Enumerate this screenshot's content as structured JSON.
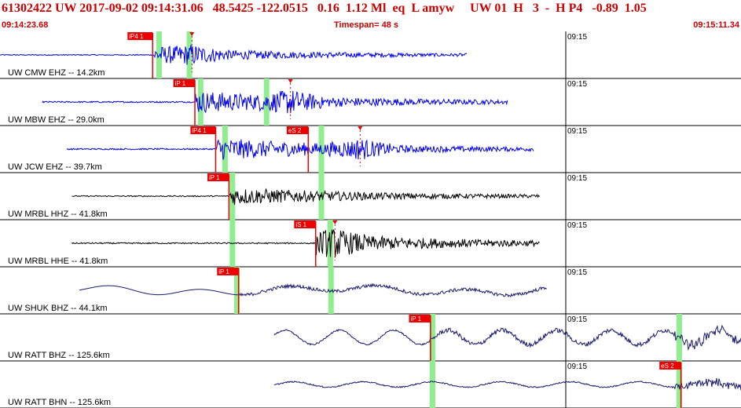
{
  "header": {
    "event_line": "61302422 UW 2017-09-02 09:14:31.06   48.5425 -122.0515   0.16  1.12 Ml  eq  L amyw     UW 01  H   3  -  H P4   -0.89  1.05",
    "start_time": "09:14:23.68",
    "timespan": "Timespan=  48 s",
    "end_time": "09:15:11.34"
  },
  "time_tick_label": "09:15",
  "colors": {
    "header_text": "#cc0000",
    "blue_trace": "#0000ee",
    "black_trace": "#000000",
    "navy_trace": "#1a1a6e",
    "pick": "#ee0000",
    "window": "#90ee90",
    "grid": "#000000"
  },
  "traces": [
    {
      "label": "UW CMW EHZ -- 14.2km",
      "color": "blue",
      "start": 0.0,
      "end": 0.63,
      "type": "sp",
      "amp": 0.35,
      "picks": [
        {
          "label": "iP4 1",
          "t": 0.206
        }
      ],
      "windows": [
        0.211,
        0.252
      ],
      "s_marker": 0.259
    },
    {
      "label": "UW MBW EHZ -- 29.0km",
      "color": "blue",
      "start": 0.057,
      "end": 0.685,
      "type": "sp",
      "amp": 0.5,
      "picks": [
        {
          "label": "iP 1",
          "t": 0.263
        }
      ],
      "windows": [
        0.267,
        0.356
      ],
      "s_marker": 0.392
    },
    {
      "label": "UW JCW EHZ -- 39.7km",
      "color": "blue",
      "start": 0.09,
      "end": 0.72,
      "type": "sp",
      "amp": 0.5,
      "picks": [
        {
          "label": "iP4 1",
          "t": 0.291
        },
        {
          "label": "eS 2",
          "t": 0.416
        }
      ],
      "windows": [
        0.3,
        0.43
      ],
      "s_marker": 0.486
    },
    {
      "label": "UW MRBL HHZ -- 41.8km",
      "color": "black",
      "start": 0.097,
      "end": 0.728,
      "type": "bb",
      "amp": 0.4,
      "picks": [
        {
          "label": "iP 1",
          "t": 0.309
        }
      ],
      "windows": [
        0.31,
        0.43
      ],
      "s_marker": null
    },
    {
      "label": "UW MRBL HHE -- 41.8km",
      "color": "black",
      "start": 0.097,
      "end": 0.728,
      "type": "bb",
      "amp": 0.45,
      "picks": [
        {
          "label": "iS 1",
          "t": 0.426
        }
      ],
      "windows": [
        0.31,
        0.442
      ],
      "s_marker": 0.452
    },
    {
      "label": "UW SHUK BHZ -- 44.1km",
      "color": "navy",
      "start": 0.107,
      "end": 0.738,
      "type": "lp",
      "amp": 0.4,
      "picks": [
        {
          "label": "iP 1",
          "t": 0.322
        }
      ],
      "windows": [
        0.316,
        0.443
      ],
      "s_marker": null
    },
    {
      "label": "UW RATT BHZ -- 125.6km",
      "color": "navy",
      "start": 0.37,
      "end": 1.0,
      "type": "lp2",
      "amp": 0.55,
      "picks": [
        {
          "label": "iP 1",
          "t": 0.581
        }
      ],
      "windows": [
        0.58,
        0.913
      ],
      "s_marker": null
    },
    {
      "label": "UW RATT BHN -- 125.6km",
      "color": "navy",
      "start": 0.37,
      "end": 1.0,
      "type": "lp3",
      "amp": 0.45,
      "picks": [
        {
          "label": "eS 2",
          "t": 0.919
        }
      ],
      "windows": [
        0.58,
        0.913
      ],
      "s_marker": null
    }
  ]
}
